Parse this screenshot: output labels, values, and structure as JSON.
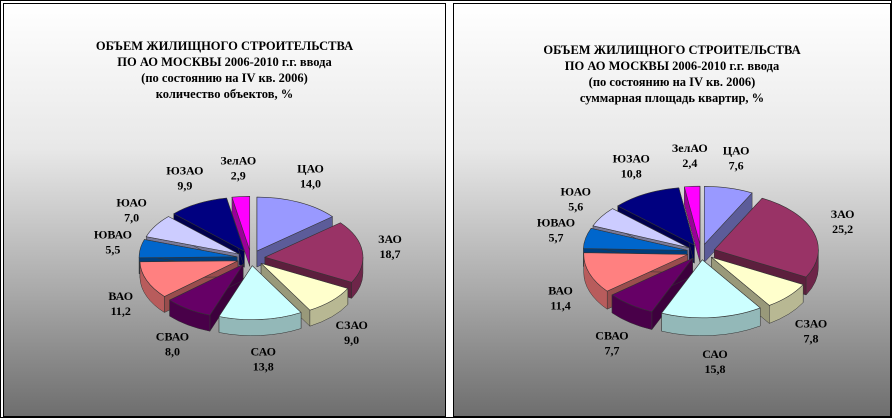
{
  "chart_data": [
    {
      "type": "pie",
      "style": "3d-exploded",
      "title": "ОБЪЕМ ЖИЛИЩНОГО СТРОИТЕЛЬСТВА",
      "title_lines": [
        "ОБЪЕМ ЖИЛИЩНОГО СТРОИТЕЛЬСТВА",
        "ПО АО МОСКВЫ 2006-2010 г.г. ввода",
        "(по состоянию на IV кв. 2006)",
        "количество объектов, %"
      ],
      "categories": [
        "ЦАО",
        "ЗАО",
        "СЗАО",
        "САО",
        "СВАО",
        "ВАО",
        "ЮВАО",
        "ЮАО",
        "ЮЗАО",
        "ЗелАО"
      ],
      "values": [
        14.0,
        18.7,
        9.0,
        13.8,
        8.0,
        11.2,
        5.5,
        7.0,
        9.9,
        2.9
      ],
      "value_labels": [
        "14,0",
        "18,7",
        "9,0",
        "13,8",
        "8,0",
        "11,2",
        "5,5",
        "7,0",
        "9,9",
        "2,9"
      ],
      "colors": [
        "#9999ff",
        "#993366",
        "#ffffcc",
        "#ccffff",
        "#660066",
        "#ff8080",
        "#0066cc",
        "#ccccff",
        "#000080",
        "#ff00ff"
      ],
      "legend": "none"
    },
    {
      "type": "pie",
      "style": "3d-exploded",
      "title": "ОБЪЕМ ЖИЛИЩНОГО СТРОИТЕЛЬСТВА",
      "title_lines": [
        "ОБЪЕМ ЖИЛИЩНОГО СТРОИТЕЛЬСТВА",
        "ПО АО МОСКВЫ 2006-2010 г.г. ввода",
        "(по состоянию на IV кв. 2006)",
        "суммарная площадь квартир, %"
      ],
      "categories": [
        "ЦАО",
        "ЗАО",
        "СЗАО",
        "САО",
        "СВАО",
        "ВАО",
        "ЮВАО",
        "ЮАО",
        "ЮЗАО",
        "ЗелАО"
      ],
      "values": [
        7.6,
        25.2,
        7.8,
        15.8,
        7.7,
        11.4,
        5.7,
        5.6,
        10.8,
        2.4
      ],
      "value_labels": [
        "7,6",
        "25,2",
        "7,8",
        "15,8",
        "7,7",
        "11,4",
        "5,7",
        "5,6",
        "10,8",
        "2,4"
      ],
      "colors": [
        "#9999ff",
        "#993366",
        "#ffffcc",
        "#ccffff",
        "#660066",
        "#ff8080",
        "#0066cc",
        "#ccccff",
        "#000080",
        "#ff00ff"
      ],
      "legend": "none"
    }
  ]
}
